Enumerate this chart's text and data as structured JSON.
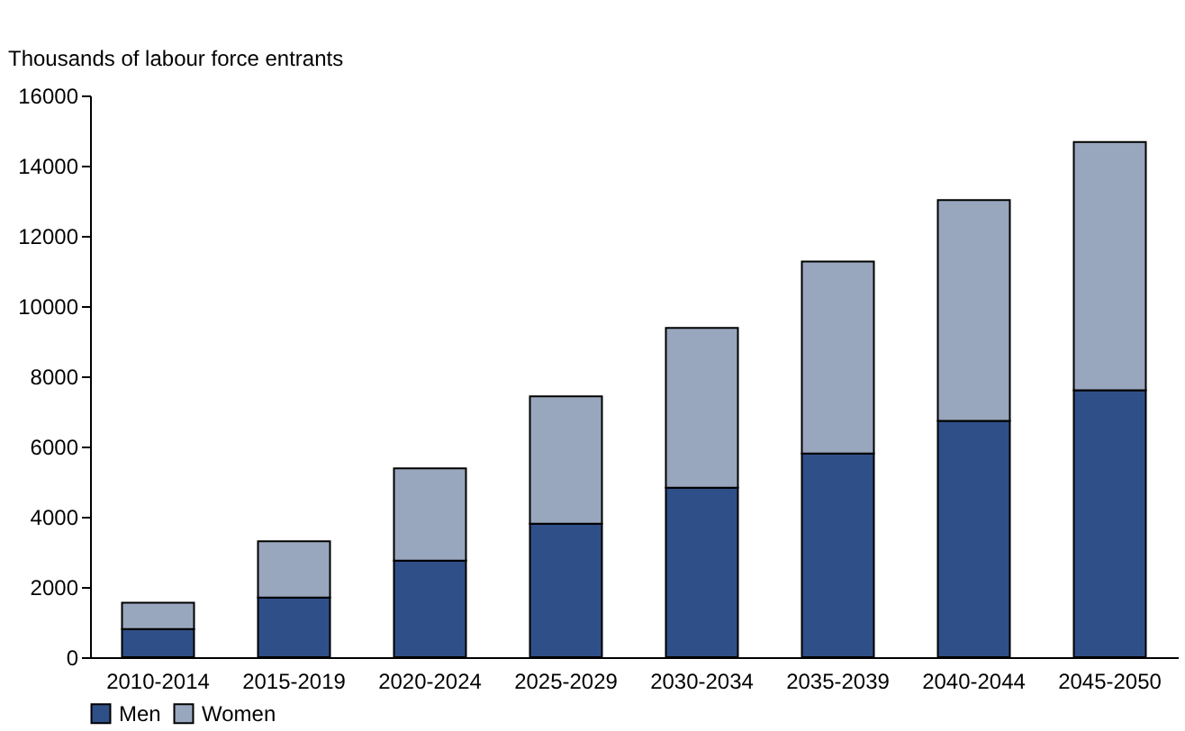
{
  "chart_data": {
    "type": "bar",
    "stacked": true,
    "ylabel": "Thousands of labour force entrants",
    "categories": [
      "2010-2014",
      "2015-2019",
      "2020-2024",
      "2025-2029",
      "2030-2034",
      "2035-2039",
      "2040-2044",
      "2045-2050"
    ],
    "series": [
      {
        "name": "Men",
        "color": "#2f4f88",
        "values": [
          800,
          1700,
          2750,
          3800,
          4830,
          5800,
          6730,
          7600
        ]
      },
      {
        "name": "Women",
        "color": "#98a7bd",
        "values": [
          750,
          1600,
          2630,
          3630,
          4550,
          5470,
          6290,
          7070
        ]
      }
    ],
    "ylim": [
      0,
      16000
    ],
    "yticks": [
      0,
      2000,
      4000,
      6000,
      8000,
      10000,
      12000,
      14000,
      16000
    ],
    "grid": false,
    "legend": "bottom"
  }
}
